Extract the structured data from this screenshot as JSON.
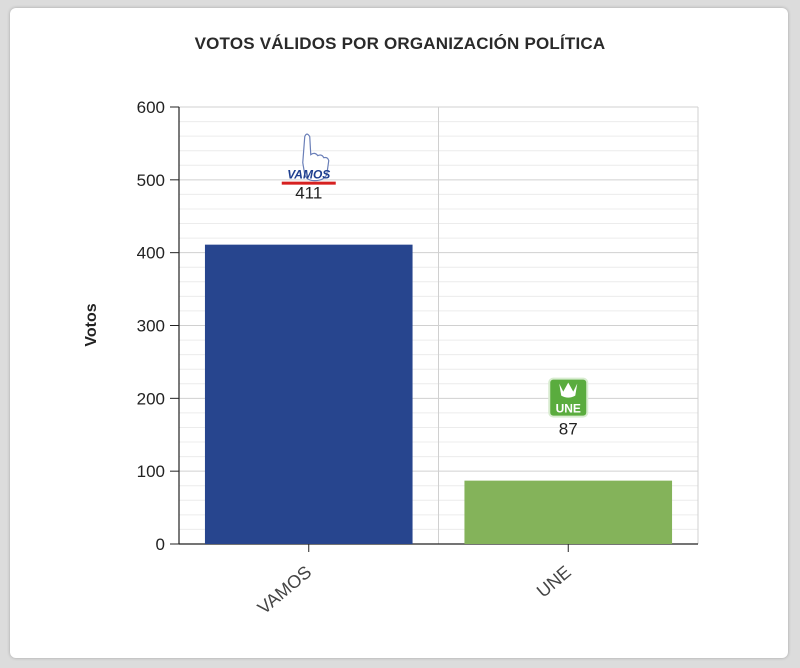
{
  "chart_data": {
    "type": "bar",
    "title": "VOTOS VÁLIDOS POR ORGANIZACIÓN POLÍTICA",
    "xlabel": "",
    "ylabel": "Votos",
    "categories": [
      "VAMOS",
      "UNE"
    ],
    "values": [
      411,
      87
    ],
    "bar_colors": [
      "#27458e",
      "#84b35a"
    ],
    "party_logos": [
      "VAMOS",
      "UNE"
    ],
    "ylim": [
      0,
      600
    ],
    "yticks": [
      0,
      100,
      200,
      300,
      400,
      500,
      600
    ],
    "grid": true
  },
  "colors": {
    "background": "#dcdcdc",
    "card": "#ffffff",
    "grid_major": "#d0d0d0",
    "grid_minor": "#ececec",
    "axis": "#222222",
    "vamos_logo_text": "#1f3f8f",
    "vamos_logo_underline": "#d62020",
    "une_logo": "#5aac3e"
  }
}
